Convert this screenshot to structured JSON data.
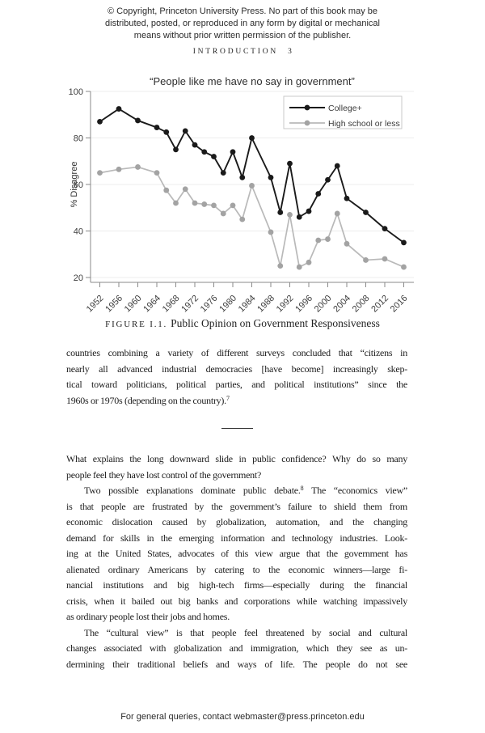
{
  "page": {
    "copyright_lines": [
      "© Copyright, Princeton University Press. No part of this book may be",
      "distributed, posted, or reproduced in any form by digital or mechanical",
      "means without prior written permission of the publisher."
    ],
    "running_head": {
      "title": "INTRODUCTION",
      "page_number": "3"
    },
    "figure_caption": {
      "label": "FIGURE I.1.",
      "text": "Public Opinion on Government Responsiveness"
    },
    "footer": "For general queries, contact webmaster@press.princeton.edu"
  },
  "chart_data": {
    "type": "line",
    "title": "“People like me have no say in government”",
    "xlabel": "",
    "ylabel": "% Disagree",
    "ylim": [
      20,
      100
    ],
    "yticks": [
      20,
      40,
      60,
      80,
      100
    ],
    "xticks": [
      1952,
      1956,
      1960,
      1964,
      1968,
      1972,
      1976,
      1980,
      1984,
      1988,
      1992,
      1996,
      2000,
      2004,
      2008,
      2012,
      2016
    ],
    "x_tick_rotation": 45,
    "grid": "horizontal-light",
    "legend_position": "top-right",
    "x": [
      1952,
      1956,
      1960,
      1964,
      1966,
      1968,
      1970,
      1972,
      1974,
      1976,
      1978,
      1980,
      1982,
      1984,
      1988,
      1990,
      1992,
      1994,
      1996,
      1998,
      2000,
      2002,
      2004,
      2008,
      2012,
      2016
    ],
    "series": [
      {
        "name": "College+",
        "color": "#1a1a1a",
        "dot_color": "#1a1a1a",
        "values": [
          87,
          92.5,
          87.5,
          84.5,
          82.5,
          75,
          83,
          77,
          74,
          72,
          65,
          74,
          63,
          80,
          63,
          48,
          69,
          46,
          48.5,
          56,
          62,
          68,
          54,
          48,
          41,
          35
        ]
      },
      {
        "name": "High school or less",
        "color": "#b9b9b9",
        "dot_color": "#a3a3a3",
        "values": [
          65,
          66.5,
          67.5,
          65,
          57.5,
          52,
          58,
          52,
          51.5,
          51,
          47.5,
          51,
          45,
          59.5,
          39.5,
          25,
          47,
          24.5,
          26.5,
          36,
          36.5,
          47.5,
          34.5,
          27.5,
          28,
          24.5
        ]
      }
    ]
  },
  "body": {
    "sections": [
      {
        "type": "para",
        "indent": false,
        "justify_last": false,
        "lines": [
          "countries combining a variety of different surveys concluded that “citizens in",
          "nearly all advanced industrial democracies [have become] increasingly skep-",
          "tical toward politicians, political parties, and political institutions” since the",
          "1960s or 1970s (depending on the country).^{7}"
        ]
      },
      {
        "type": "divider"
      },
      {
        "type": "para",
        "indent": false,
        "justify_last": false,
        "lines": [
          "What explains the long downward slide in public confidence? Why do so many",
          "people feel they have lost control of the government?"
        ]
      },
      {
        "type": "para",
        "indent": true,
        "justify_last": false,
        "lines": [
          "Two possible explanations dominate public debate.^{8} The “economics view”",
          "is that people are frustrated by the government’s failure to shield them from",
          "economic dislocation caused by globalization, automation, and the changing",
          "demand for skills in the emerging information and technology industries. Look-",
          "ing at the United States, advocates of this view argue that the government has",
          "alienated ordinary Americans by catering to the economic winners—large fi-",
          "nancial institutions and big high-tech firms—especially during the financial",
          "crisis, when it bailed out big banks and corporations while watching impassively",
          "as ordinary people lost their jobs and homes."
        ]
      },
      {
        "type": "para",
        "indent": true,
        "justify_last": true,
        "lines": [
          "The “cultural view” is that people feel threatened by social and cultural",
          "changes associated with globalization and immigration, which they see as un-",
          "dermining their traditional beliefs and ways of life. The people do not see"
        ]
      }
    ]
  }
}
